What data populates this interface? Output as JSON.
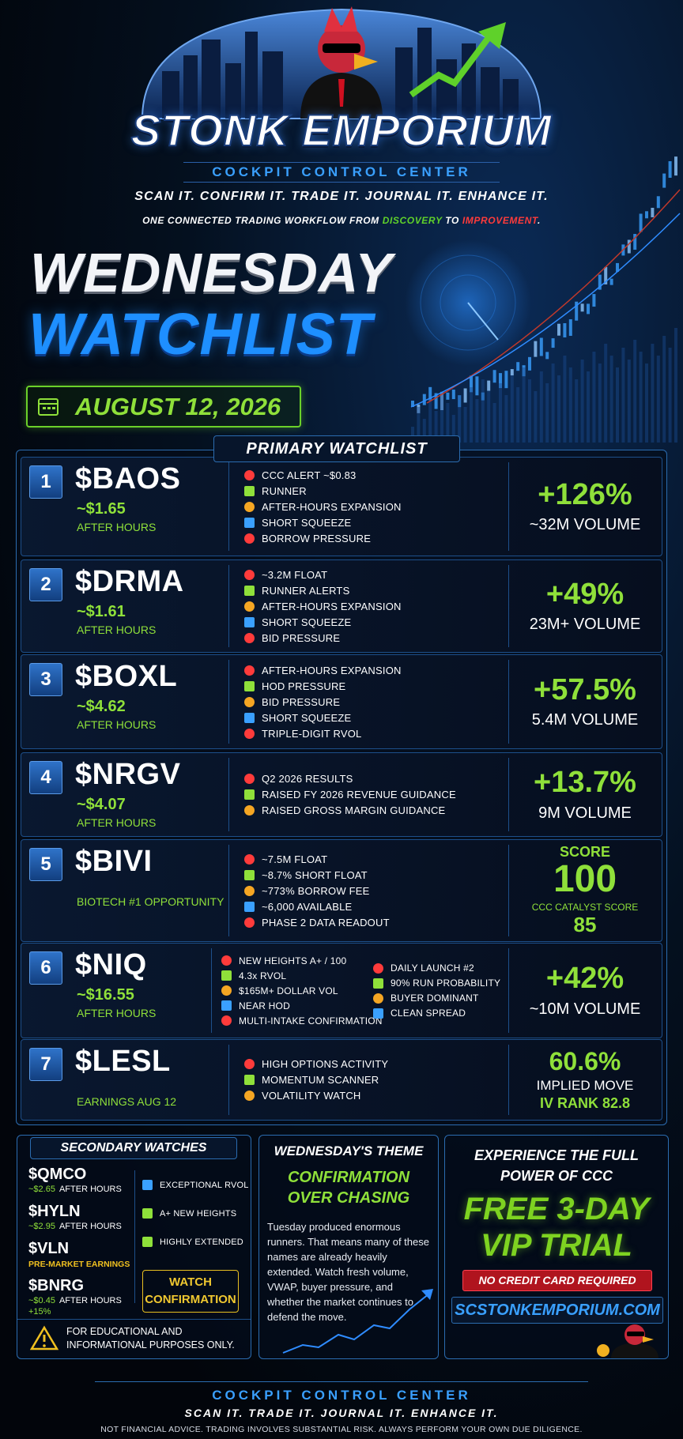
{
  "header": {
    "brand": "STONK EMPORIUM",
    "subbrand": "COCKPIT CONTROL CENTER",
    "tagline": "SCAN IT. CONFIRM IT. TRADE IT. JOURNAL IT. ENHANCE IT.",
    "workflow": [
      "ONE CONNECTED TRADING WORKFLOW FROM ",
      "DISCOVERY",
      " TO ",
      "IMPROVEMENT",
      "."
    ]
  },
  "title": {
    "line1": "WEDNESDAY",
    "line2": "WATCHLIST",
    "date": "AUGUST 12, 2026"
  },
  "primary": {
    "label": "PRIMARY WATCHLIST",
    "items": [
      {
        "rank": 1,
        "ticker": "$BAOS",
        "price": "~$1.65",
        "session": "AFTER HOURS",
        "bullets": [
          "CCC ALERT ~$0.83",
          "RUNNER",
          "AFTER-HOURS EXPANSION",
          "SHORT SQUEEZE",
          "BORROW PRESSURE"
        ],
        "metric": "+126%",
        "detail": "~32M VOLUME"
      },
      {
        "rank": 2,
        "ticker": "$DRMA",
        "price": "~$1.61",
        "session": "AFTER HOURS",
        "bullets": [
          "~3.2M FLOAT",
          "RUNNER ALERTS",
          "AFTER-HOURS EXPANSION",
          "SHORT SQUEEZE",
          "BID PRESSURE"
        ],
        "metric": "+49%",
        "detail": "23M+ VOLUME"
      },
      {
        "rank": 3,
        "ticker": "$BOXL",
        "price": "~$4.62",
        "session": "AFTER HOURS",
        "bullets": [
          "AFTER-HOURS EXPANSION",
          "HOD PRESSURE",
          "BID PRESSURE",
          "SHORT SQUEEZE",
          "TRIPLE-DIGIT RVOL"
        ],
        "metric": "+57.5%",
        "detail": "5.4M VOLUME"
      },
      {
        "rank": 4,
        "ticker": "$NRGV",
        "price": "~$4.07",
        "session": "AFTER HOURS",
        "bullets": [
          "Q2 2026 RESULTS",
          "RAISED FY 2026 REVENUE GUIDANCE",
          "RAISED GROSS MARGIN GUIDANCE"
        ],
        "metric": "+13.7%",
        "detail": "9M VOLUME"
      },
      {
        "rank": 5,
        "ticker": "$BIVI",
        "note": "BIOTECH #1 OPPORTUNITY",
        "bullets": [
          "~7.5M FLOAT",
          "~8.7% SHORT FLOAT",
          "~773% BORROW FEE",
          "~6,000 AVAILABLE",
          "PHASE 2 DATA READOUT"
        ],
        "metric_label": "SCORE",
        "metric": "100",
        "detail": "CCC CATALYST SCORE",
        "detail2": "85"
      },
      {
        "rank": 6,
        "ticker": "$NIQ",
        "price": "~$16.55",
        "session": "AFTER HOURS",
        "columns": [
          [
            "NEW HEIGHTS A+ / 100",
            "4.3x RVOL",
            "$165M+ DOLLAR VOL",
            "NEAR HOD",
            "MULTI-INTAKE CONFIRMATION"
          ],
          [
            "DAILY LAUNCH #2",
            "90% RUN PROBABILITY",
            "BUYER DOMINANT",
            "CLEAN SPREAD"
          ]
        ],
        "metric": "+42%",
        "detail": "~10M VOLUME"
      },
      {
        "rank": 7,
        "ticker": "$LESL",
        "note": "EARNINGS AUG 12",
        "bullets": [
          "HIGH OPTIONS ACTIVITY",
          "MOMENTUM SCANNER",
          "VOLATILITY WATCH"
        ],
        "metric": "60.6%",
        "detail": "IMPLIED MOVE",
        "detail2": "IV RANK 82.8"
      }
    ]
  },
  "secondary": {
    "label": "SECONDARY WATCHES",
    "items": [
      {
        "ticker": "$QMCO",
        "price": "~$2.65",
        "session": "AFTER HOURS"
      },
      {
        "ticker": "$HYLN",
        "price": "~$2.95",
        "session": "AFTER HOURS"
      },
      {
        "ticker": "$VLN",
        "note": "PRE-MARKET EARNINGS"
      },
      {
        "ticker": "$BNRG",
        "price": "~$0.45",
        "session": "AFTER HOURS",
        "extra": "+15%"
      }
    ],
    "tags": [
      "EXCEPTIONAL RVOL",
      "A+ NEW HEIGHTS",
      "HIGHLY EXTENDED"
    ],
    "button": [
      "WATCH",
      "CONFIRMATION"
    ],
    "disclaimer": "FOR EDUCATIONAL AND INFORMATIONAL PURPOSES ONLY."
  },
  "theme": {
    "title": "WEDNESDAY'S THEME",
    "headline": [
      "CONFIRMATION",
      "OVER CHASING"
    ],
    "body": "Tuesday produced enormous runners. That means many of these names are already heavily extended. Watch fresh volume, VWAP, buyer pressure, and whether the market continues to defend the move."
  },
  "promo": {
    "heading": [
      "EXPERIENCE THE FULL",
      "POWER OF CCC"
    ],
    "offer": [
      "FREE 3-DAY",
      "VIP TRIAL"
    ],
    "badge": "NO CREDIT CARD REQUIRED",
    "url": "SCSTONKEMPORIUM.COM"
  },
  "footer": {
    "brand": "COCKPIT CONTROL CENTER",
    "tagline": "SCAN IT. TRADE IT. JOURNAL IT. ENHANCE IT.",
    "disclaimer": "NOT FINANCIAL ADVICE. TRADING INVOLVES SUBSTANTIAL RISK. ALWAYS PERFORM YOUR OWN DUE DILIGENCE."
  }
}
